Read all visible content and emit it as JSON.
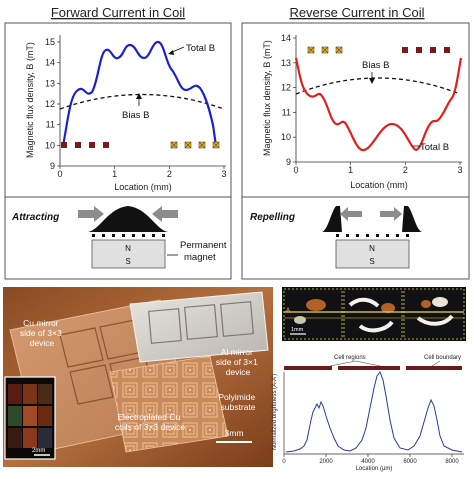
{
  "panels": {
    "forward": {
      "title": "Forward Current in Coil",
      "ylabel": "Magnetic flux density, B (mT)",
      "xlabel": "Location (mm)",
      "yticks": [
        "9",
        "10",
        "11",
        "12",
        "13",
        "14",
        "15"
      ],
      "xticks": [
        "0",
        "1",
        "2",
        "3"
      ],
      "total_label": "Total B",
      "bias_label": "Bias B",
      "mode_label": "Attracting",
      "magnet_n": "N",
      "magnet_s": "S",
      "magnet_label_1": "Permanent",
      "magnet_label_2": "magnet",
      "line_color": "#1a22c8"
    },
    "reverse": {
      "title": "Reverse Current in Coil",
      "ylabel": "Magnetic flux density, B (mT)",
      "xlabel": "Location (mm)",
      "yticks": [
        "9",
        "10",
        "11",
        "12",
        "13",
        "14"
      ],
      "xticks": [
        "0",
        "1",
        "2",
        "3"
      ],
      "total_label": "Total B",
      "bias_label": "Bias B",
      "mode_label": "Repelling",
      "magnet_n": "N",
      "magnet_s": "S",
      "line_color": "#e0201c"
    }
  },
  "photo": {
    "label_cu_mirror": [
      "Cu mirror",
      "side of 3×3",
      "device"
    ],
    "label_al_mirror": [
      "Al mirror",
      "side of 3×1",
      "device"
    ],
    "label_coils": [
      "Electroplated Cu",
      "coils of 3×3 device"
    ],
    "label_substrate": [
      "Polyimide",
      "substrate"
    ],
    "scale": "3mm",
    "inset_scale": "2mm"
  },
  "brightness_chart": {
    "ylabel": "Normalized brightness (A-A')",
    "xlabel": "Location (μm)",
    "xticks": [
      "0",
      "2000",
      "4000",
      "6000",
      "8000"
    ],
    "cell_regions_label": "Cell regions",
    "cell_boundary_label": "Cell boundary",
    "micro_scale": "1mm",
    "marker_a": "A",
    "line_color": "#2a3aa0"
  }
}
